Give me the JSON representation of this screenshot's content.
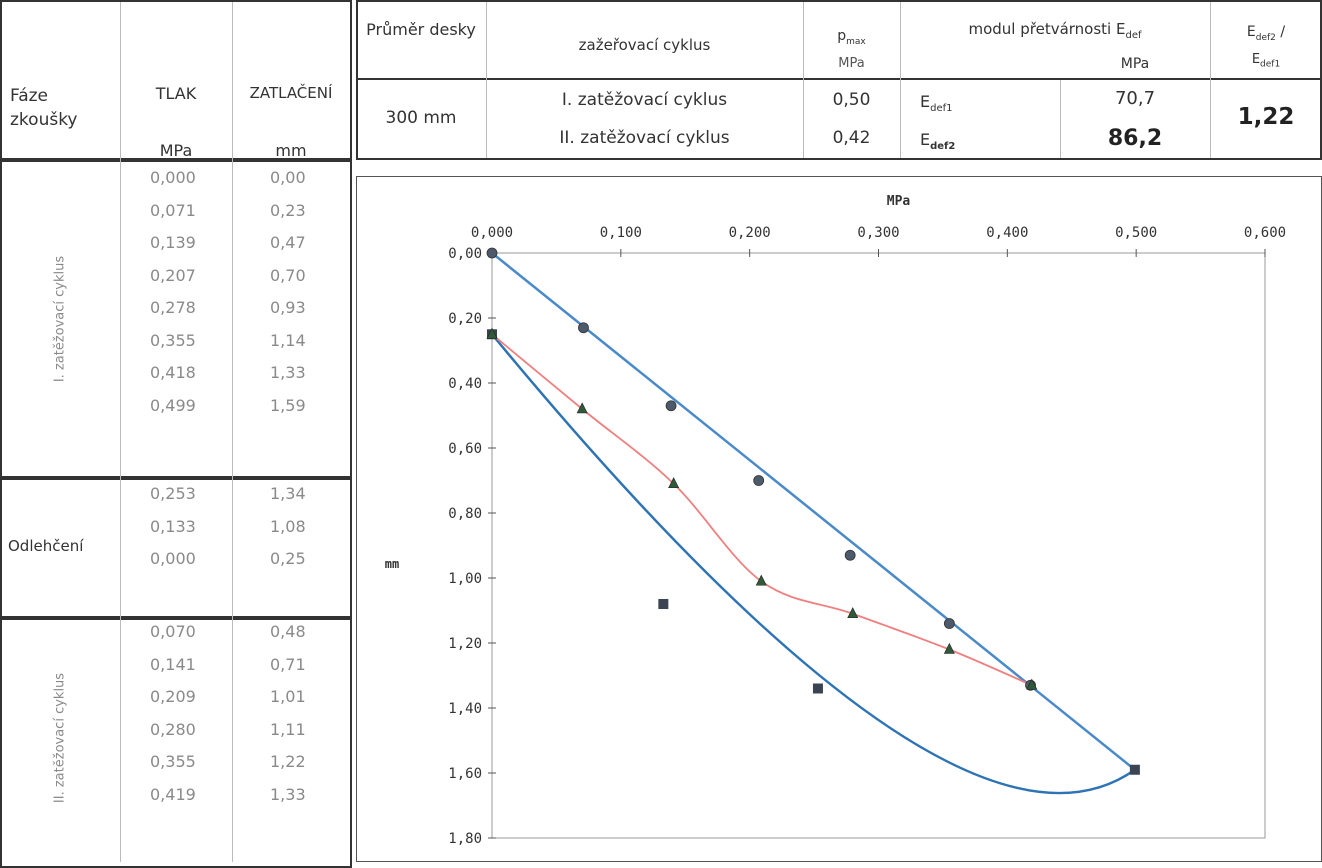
{
  "left_table": {
    "headers": {
      "phase": "Fáze zkoušky",
      "pressure": "TLAK",
      "pressure_unit": "MPa",
      "settlement": "ZATLAČENÍ",
      "settlement_unit": "mm"
    },
    "groups": [
      {
        "label": "I. zatěžovací cyklus",
        "rows": [
          [
            "0,000",
            "0,00"
          ],
          [
            "0,071",
            "0,23"
          ],
          [
            "0,139",
            "0,47"
          ],
          [
            "0,207",
            "0,70"
          ],
          [
            "0,278",
            "0,93"
          ],
          [
            "0,355",
            "1,14"
          ],
          [
            "0,418",
            "1,33"
          ],
          [
            "0,499",
            "1,59"
          ]
        ]
      },
      {
        "label": "Odlehčení",
        "rows": [
          [
            "0,253",
            "1,34"
          ],
          [
            "0,133",
            "1,08"
          ],
          [
            "0,000",
            "0,25"
          ]
        ]
      },
      {
        "label": "II. zatěžovací cyklus",
        "rows": [
          [
            "0,070",
            "0,48"
          ],
          [
            "0,141",
            "0,71"
          ],
          [
            "0,209",
            "1,01"
          ],
          [
            "0,280",
            "1,11"
          ],
          [
            "0,355",
            "1,22"
          ],
          [
            "0,419",
            "1,33"
          ]
        ]
      }
    ]
  },
  "summary": {
    "plate_label": "Průměr desky",
    "cycle_label": "zažeřovací cyklus",
    "pmax_label": "p",
    "pmax_sub": "max",
    "pmax_unit": "MPa",
    "modulus_label": "modul přetvárnosti E",
    "modulus_sub": "def",
    "modulus_unit": "MPa",
    "ratio_num": "E",
    "ratio_num_sub": "def2",
    "ratio_slash": " /",
    "ratio_den": "E",
    "ratio_den_sub": "def1",
    "plate_value": "300 mm",
    "cycle1": "I. zatěžovací cyklus",
    "cycle2": "II. zatěžovací cyklus",
    "p1": "0,50",
    "p2": "0,42",
    "e1_label": "E",
    "e1_sub": "def1",
    "e2_label": "E",
    "e2_sub": "def2",
    "e1_value": "70,7",
    "e2_value": "86,2",
    "ratio_value": "1,22"
  },
  "chart_data": {
    "type": "scatter",
    "xlabel": "MPa",
    "ylabel": "mm",
    "xlim": [
      0,
      0.6
    ],
    "ylim": [
      0,
      1.8
    ],
    "y_inverted": true,
    "x_axis_position": "top",
    "x_ticks": [
      "0,000",
      "0,100",
      "0,200",
      "0,300",
      "0,400",
      "0,500",
      "0,600"
    ],
    "y_ticks": [
      "0,00",
      "0,20",
      "0,40",
      "0,60",
      "0,80",
      "1,00",
      "1,20",
      "1,40",
      "1,60",
      "1,80"
    ],
    "grid": false,
    "colors": {
      "load_curve": "#4a8ac8",
      "unload_curve": "#2e74b5",
      "reload_curve": "#f08080"
    },
    "series": [
      {
        "marker": "circle",
        "x": [
          0.0,
          0.071,
          0.139,
          0.207,
          0.278,
          0.355,
          0.418
        ],
        "y": [
          0.0,
          0.23,
          0.47,
          0.7,
          0.93,
          1.14,
          1.33
        ]
      },
      {
        "marker": "square",
        "x": [
          0.499,
          0.253,
          0.133,
          0.0
        ],
        "y": [
          1.59,
          1.34,
          1.08,
          0.25
        ]
      },
      {
        "marker": "triangle",
        "x": [
          0.0,
          0.07,
          0.141,
          0.209,
          0.28,
          0.355,
          0.419
        ],
        "y": [
          0.25,
          0.48,
          0.71,
          1.01,
          1.11,
          1.22,
          1.33
        ]
      }
    ]
  }
}
